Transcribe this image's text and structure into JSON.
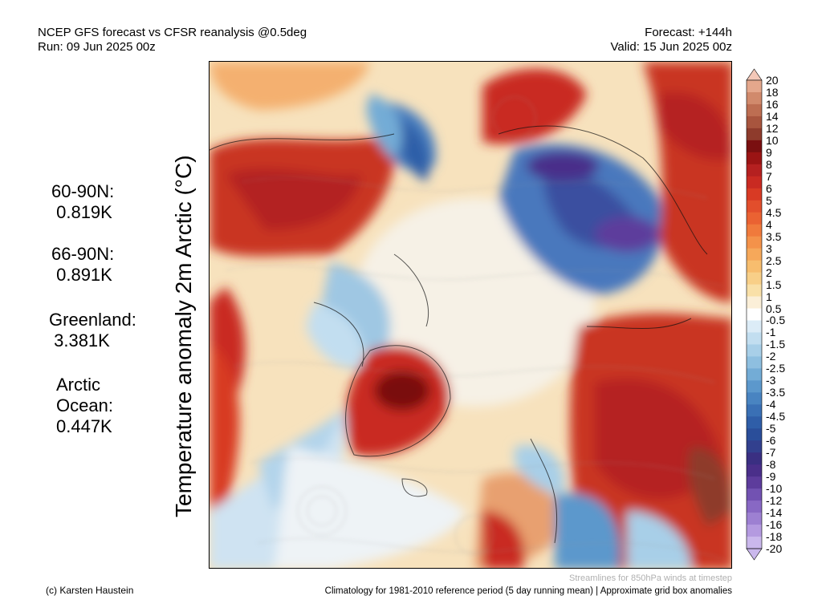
{
  "header": {
    "title_line1": "NCEP GFS forecast vs CFSR reanalysis @0.5deg",
    "title_line2": "Run: 09 Jun 2025 00z",
    "forecast_line1": "Forecast: +144h",
    "forecast_line2": "Valid: 15 Jun 2025 00z"
  },
  "stats": {
    "n60": "60-90N:\n 0.819K",
    "n66": "66-90N:\n 0.891K",
    "greenland": "Greenland:\n 3.381K",
    "arctic": "Arctic\nOcean:\n0.447K"
  },
  "y_label": "Temperature anomaly 2m Arctic (°C)",
  "colorbar": {
    "labels": [
      "20",
      "18",
      "16",
      "14",
      "12",
      "10",
      "9",
      "8",
      "7",
      "6",
      "5",
      "4.5",
      "4",
      "3.5",
      "3",
      "2.5",
      "2",
      "1.5",
      "1",
      "0.5",
      "-0.5",
      "-1",
      "-1.5",
      "-2",
      "-2.5",
      "-3",
      "-3.5",
      "-4",
      "-4.5",
      "-5",
      "-6",
      "-7",
      "-8",
      "-9",
      "-10",
      "-12",
      "-14",
      "-16",
      "-18",
      "-20"
    ],
    "colors": [
      "#f3c8b8",
      "#e4a78c",
      "#d18a6c",
      "#bd6e52",
      "#a8553e",
      "#8e3b2c",
      "#7a0f10",
      "#9b1414",
      "#b52020",
      "#c92a22",
      "#d83a24",
      "#e24e2c",
      "#ea6232",
      "#f07a3c",
      "#f4924a",
      "#f6a85a",
      "#f7bd6e",
      "#f8cf88",
      "#f9e0a8",
      "#fbefd8",
      "#ffffff",
      "#dcecf7",
      "#c2def0",
      "#a8cfe8",
      "#8ebfe0",
      "#73acd6",
      "#5c98cc",
      "#4984c1",
      "#3a70b5",
      "#2f5ea8",
      "#2a4e9a",
      "#32408e",
      "#3a2f82",
      "#4a2f8a",
      "#5d3c9c",
      "#7252b2",
      "#8868c4",
      "#9d80d2",
      "#b49ae0",
      "#cab8ec"
    ]
  },
  "footer": {
    "author": "(c) Karsten Haustein",
    "streamlines": "Streamlines for 850hPa winds at timestep",
    "climatology": "Climatology for 1981-2010 reference period (5 day running mean) | Approximate grid box anomalies"
  }
}
